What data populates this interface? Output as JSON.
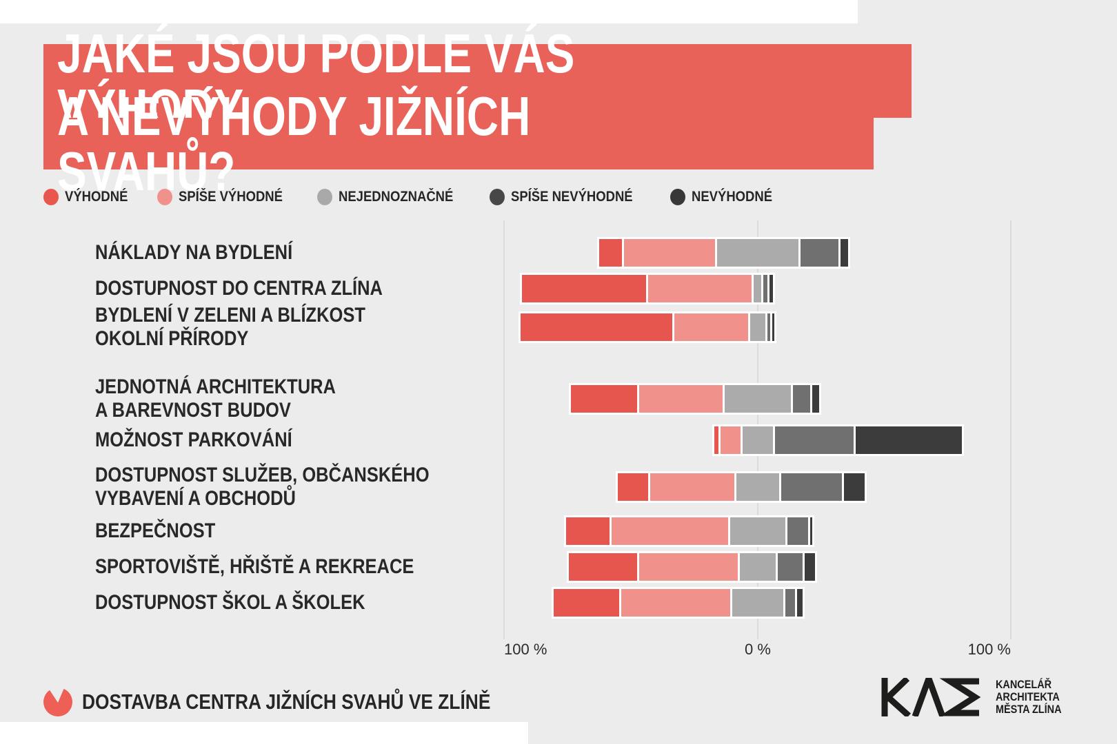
{
  "page": {
    "background_color": "#edecec",
    "accent_red": "#e9625a"
  },
  "title": {
    "line1": "JAKÉ JSOU PODLE VÁS VÝHODY",
    "line2": "A NEVÝHODY JIŽNÍCH SVAHŮ?",
    "banner_color": "#e9625a",
    "text_color": "#ffffff"
  },
  "legend": {
    "items": [
      {
        "label": "VÝHODNÉ",
        "dot_color": "#e8564e"
      },
      {
        "label": "SPÍŠE VÝHODNÉ",
        "dot_color": "#f0918b"
      },
      {
        "label": "NEJEDNOZNAČNÉ",
        "dot_color": "#a9a9a9"
      },
      {
        "label": "SPÍŠE NEVÝHODNÉ",
        "dot_color": "#474747"
      },
      {
        "label": "NEVÝHODNÉ",
        "dot_color": "#383838"
      }
    ]
  },
  "chart_data": {
    "type": "bar",
    "variant": "horizontal diverging stacked (Likert); neutral category centered on 0 axis; positive answers extend left, negative extend right",
    "title": "JAKÉ JSOU PODLE VÁS VÝHODY A NEVÝHODY JIŽNÍCH SVAHŮ?",
    "unit": "%",
    "axis_tick_labels": [
      "100 %",
      "0 %",
      "100 %"
    ],
    "grid": true,
    "legend_position": "top",
    "categories": [
      "NÁKLADY NA BYDLENÍ",
      "DOSTUPNOST DO CENTRA ZLÍNA",
      "BYDLENÍ V ZELENI A BLÍZKOST\nOKOLNÍ PŘÍRODY",
      "JEDNOTNÁ ARCHITEKTURA\nA BAREVNOST BUDOV",
      "MOŽNOST PARKOVÁNÍ",
      "DOSTUPNOST SLUŽEB, OBČANSKÉHO\nVYBAVENÍ A OBCHODŮ",
      "BEZPEČNOST",
      "SPORTOVIŠTĚ, HŘIŠTĚ A REKREACE",
      "DOSTUPNOST ŠKOL A ŠKOLEK"
    ],
    "series": [
      {
        "name": "VÝHODNÉ",
        "color": "#e6564e",
        "values": [
          9,
          49,
          60,
          26,
          1.5,
          12,
          17,
          27,
          26
        ]
      },
      {
        "name": "SPÍŠE VÝHODNÉ",
        "color": "#f1918b",
        "values": [
          36,
          41,
          29,
          33,
          8,
          33,
          46,
          39,
          43
        ]
      },
      {
        "name": "NEJEDNOZNAČNÉ",
        "color": "#ababab",
        "values": [
          32,
          3,
          6,
          26,
          12,
          17,
          22,
          14,
          20
        ]
      },
      {
        "name": "SPÍŠE NEVÝHODNÉ",
        "color": "#707070",
        "values": [
          15,
          1.5,
          1,
          7,
          31,
          24,
          8,
          10,
          4
        ]
      },
      {
        "name": "NEVÝHODNÉ",
        "color": "#3c3c3c",
        "values": [
          3,
          1.5,
          1,
          2.5,
          42,
          8,
          1,
          4,
          2
        ]
      }
    ]
  },
  "axis": {
    "left": "100 %",
    "center": "0 %",
    "right": "100 %"
  },
  "footer": {
    "text": "DOSTAVBA CENTRA JIŽNÍCH SVAHŮ VE ZLÍNĚ",
    "icon_color": "#ee6055"
  },
  "logo": {
    "mark": "KAM",
    "lines": [
      "KANCELÁŘ",
      "ARCHITEKTA",
      "MĚSTA ZLÍNA"
    ],
    "color": "#1d1d1b"
  }
}
